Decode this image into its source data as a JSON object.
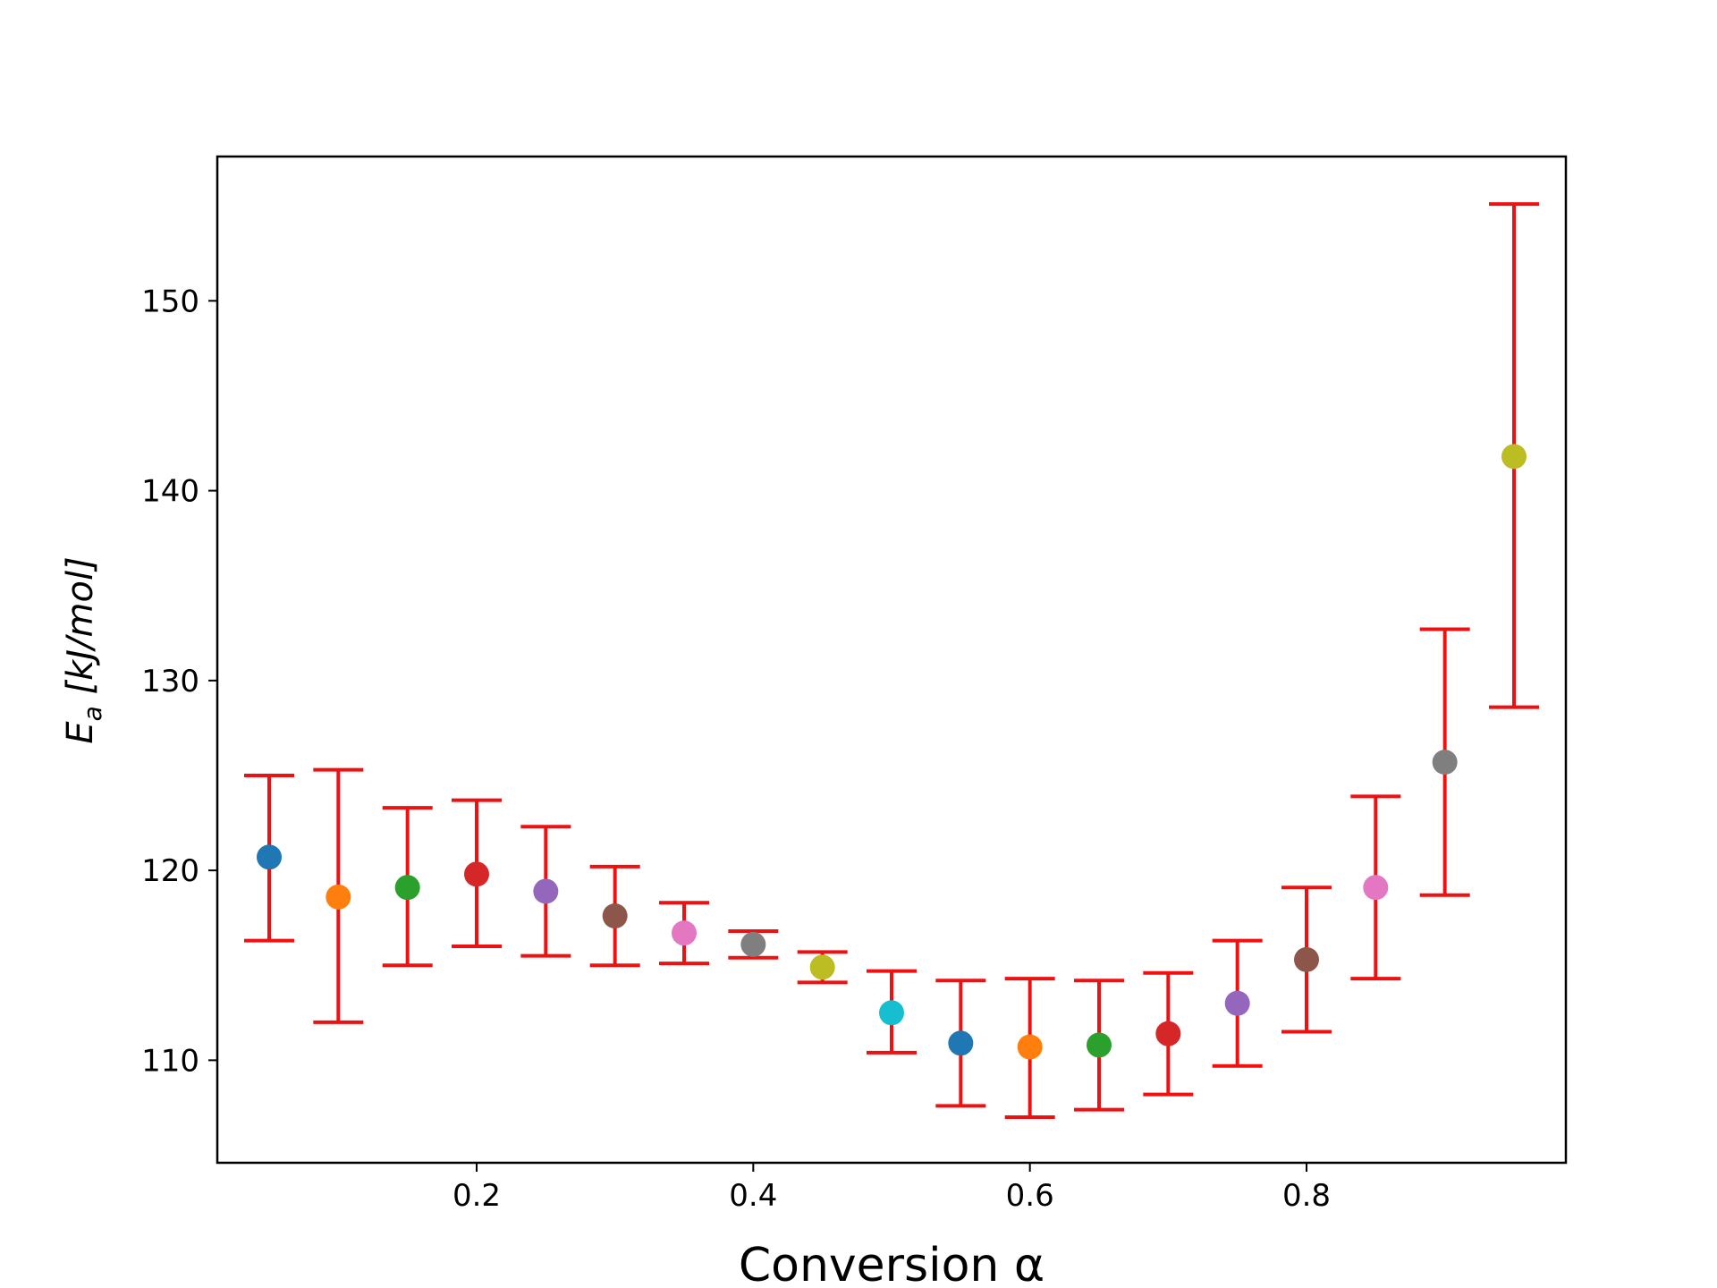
{
  "chart_data": {
    "type": "scatter",
    "title": "",
    "xlabel": "Conversion α",
    "ylabel_main": "E",
    "ylabel_sub": "a",
    "ylabel_unit": " [kJ/mol]",
    "xlim": [
      0.0125,
      0.9875
    ],
    "ylim": [
      104.6,
      157.6
    ],
    "xticks": [
      0.2,
      0.4,
      0.6,
      0.8
    ],
    "xtick_labels": [
      "0.2",
      "0.4",
      "0.6",
      "0.8"
    ],
    "yticks": [
      110,
      120,
      130,
      140,
      150
    ],
    "ytick_labels": [
      "110",
      "120",
      "130",
      "140",
      "150"
    ],
    "grid": false,
    "errorbar_color": "#ee1111",
    "points": [
      {
        "x": 0.05,
        "y": 120.7,
        "lower": 116.3,
        "upper": 125.0,
        "color": "#1f77b4"
      },
      {
        "x": 0.1,
        "y": 118.6,
        "lower": 112.0,
        "upper": 125.3,
        "color": "#ff7f0e"
      },
      {
        "x": 0.15,
        "y": 119.1,
        "lower": 115.0,
        "upper": 123.3,
        "color": "#2ca02c"
      },
      {
        "x": 0.2,
        "y": 119.8,
        "lower": 116.0,
        "upper": 123.7,
        "color": "#d62728"
      },
      {
        "x": 0.25,
        "y": 118.9,
        "lower": 115.5,
        "upper": 122.3,
        "color": "#9467bd"
      },
      {
        "x": 0.3,
        "y": 117.6,
        "lower": 115.0,
        "upper": 120.2,
        "color": "#8c564b"
      },
      {
        "x": 0.35,
        "y": 116.7,
        "lower": 115.1,
        "upper": 118.3,
        "color": "#e377c2"
      },
      {
        "x": 0.4,
        "y": 116.1,
        "lower": 115.4,
        "upper": 116.8,
        "color": "#7f7f7f"
      },
      {
        "x": 0.45,
        "y": 114.9,
        "lower": 114.1,
        "upper": 115.7,
        "color": "#bcbd22"
      },
      {
        "x": 0.5,
        "y": 112.5,
        "lower": 110.4,
        "upper": 114.7,
        "color": "#17becf"
      },
      {
        "x": 0.55,
        "y": 110.9,
        "lower": 107.6,
        "upper": 114.2,
        "color": "#1f77b4"
      },
      {
        "x": 0.6,
        "y": 110.7,
        "lower": 107.0,
        "upper": 114.3,
        "color": "#ff7f0e"
      },
      {
        "x": 0.65,
        "y": 110.8,
        "lower": 107.4,
        "upper": 114.2,
        "color": "#2ca02c"
      },
      {
        "x": 0.7,
        "y": 111.4,
        "lower": 108.2,
        "upper": 114.6,
        "color": "#d62728"
      },
      {
        "x": 0.75,
        "y": 113.0,
        "lower": 109.7,
        "upper": 116.3,
        "color": "#9467bd"
      },
      {
        "x": 0.8,
        "y": 115.3,
        "lower": 111.5,
        "upper": 119.1,
        "color": "#8c564b"
      },
      {
        "x": 0.85,
        "y": 119.1,
        "lower": 114.3,
        "upper": 123.9,
        "color": "#e377c2"
      },
      {
        "x": 0.9,
        "y": 125.7,
        "lower": 118.7,
        "upper": 132.7,
        "color": "#7f7f7f"
      },
      {
        "x": 0.95,
        "y": 141.8,
        "lower": 128.6,
        "upper": 155.1,
        "color": "#bcbd22"
      }
    ]
  }
}
